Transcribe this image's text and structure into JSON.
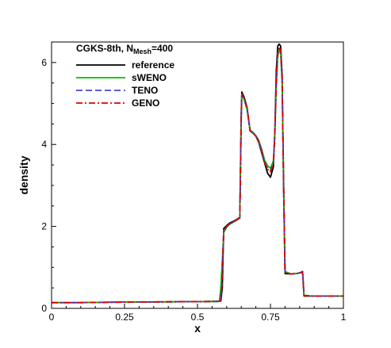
{
  "chart_data": {
    "type": "line",
    "legend_title": "CGKS-8th, N",
    "legend_title_sub": "Mesh",
    "legend_title_suffix": "=400",
    "xlabel": "x",
    "ylabel": "density",
    "xlim": [
      0,
      1
    ],
    "ylim": [
      0,
      6.5
    ],
    "x_ticks": [
      0,
      0.25,
      0.5,
      0.75,
      1
    ],
    "x_tick_labels": [
      "0",
      "0.25",
      "0.5",
      "0.75",
      "1"
    ],
    "y_ticks": [
      0,
      2,
      4,
      6
    ],
    "y_tick_labels": [
      "0",
      "2",
      "4",
      "6"
    ],
    "grid": false,
    "legend_position": "top-left",
    "series": [
      {
        "name": "reference",
        "color": "#000000",
        "dash": "solid",
        "points": [
          [
            0,
            0.14
          ],
          [
            0.1,
            0.14
          ],
          [
            0.2,
            0.15
          ],
          [
            0.3,
            0.155
          ],
          [
            0.4,
            0.16
          ],
          [
            0.5,
            0.165
          ],
          [
            0.57,
            0.17
          ],
          [
            0.58,
            0.18
          ],
          [
            0.585,
            0.5
          ],
          [
            0.59,
            1.95
          ],
          [
            0.6,
            2.02
          ],
          [
            0.61,
            2.08
          ],
          [
            0.63,
            2.15
          ],
          [
            0.645,
            2.22
          ],
          [
            0.65,
            4.8
          ],
          [
            0.652,
            5.28
          ],
          [
            0.66,
            5.15
          ],
          [
            0.67,
            4.9
          ],
          [
            0.68,
            4.35
          ],
          [
            0.69,
            4.28
          ],
          [
            0.7,
            4.2
          ],
          [
            0.71,
            4.05
          ],
          [
            0.72,
            3.8
          ],
          [
            0.73,
            3.55
          ],
          [
            0.74,
            3.3
          ],
          [
            0.75,
            3.2
          ],
          [
            0.76,
            3.45
          ],
          [
            0.765,
            4.3
          ],
          [
            0.77,
            5.8
          ],
          [
            0.775,
            6.4
          ],
          [
            0.78,
            6.45
          ],
          [
            0.785,
            6.4
          ],
          [
            0.79,
            5.7
          ],
          [
            0.795,
            3.0
          ],
          [
            0.8,
            0.85
          ],
          [
            0.82,
            0.84
          ],
          [
            0.84,
            0.85
          ],
          [
            0.855,
            0.88
          ],
          [
            0.86,
            0.9
          ],
          [
            0.865,
            0.3
          ],
          [
            0.9,
            0.3
          ],
          [
            1,
            0.3
          ]
        ]
      },
      {
        "name": "sWENO",
        "color": "#00c000",
        "dash": "solid",
        "points": [
          [
            0,
            0.14
          ],
          [
            0.1,
            0.14
          ],
          [
            0.2,
            0.15
          ],
          [
            0.3,
            0.155
          ],
          [
            0.4,
            0.16
          ],
          [
            0.5,
            0.165
          ],
          [
            0.57,
            0.17
          ],
          [
            0.575,
            0.18
          ],
          [
            0.58,
            0.5
          ],
          [
            0.59,
            1.85
          ],
          [
            0.6,
            1.98
          ],
          [
            0.61,
            2.05
          ],
          [
            0.63,
            2.13
          ],
          [
            0.645,
            2.2
          ],
          [
            0.65,
            4.6
          ],
          [
            0.652,
            5.2
          ],
          [
            0.66,
            5.1
          ],
          [
            0.67,
            4.85
          ],
          [
            0.68,
            4.35
          ],
          [
            0.69,
            4.3
          ],
          [
            0.7,
            4.22
          ],
          [
            0.71,
            4.1
          ],
          [
            0.72,
            3.88
          ],
          [
            0.73,
            3.62
          ],
          [
            0.74,
            3.48
          ],
          [
            0.75,
            3.42
          ],
          [
            0.76,
            3.6
          ],
          [
            0.765,
            4.2
          ],
          [
            0.77,
            5.4
          ],
          [
            0.775,
            6.15
          ],
          [
            0.78,
            6.3
          ],
          [
            0.785,
            6.22
          ],
          [
            0.79,
            5.5
          ],
          [
            0.795,
            3.2
          ],
          [
            0.8,
            0.9
          ],
          [
            0.82,
            0.84
          ],
          [
            0.84,
            0.85
          ],
          [
            0.855,
            0.87
          ],
          [
            0.86,
            0.9
          ],
          [
            0.865,
            0.32
          ],
          [
            0.9,
            0.3
          ],
          [
            1,
            0.3
          ]
        ]
      },
      {
        "name": "TENO",
        "color": "#4444dd",
        "dash": "dashed",
        "points": [
          [
            0,
            0.14
          ],
          [
            0.1,
            0.14
          ],
          [
            0.2,
            0.15
          ],
          [
            0.3,
            0.155
          ],
          [
            0.4,
            0.16
          ],
          [
            0.5,
            0.165
          ],
          [
            0.57,
            0.17
          ],
          [
            0.578,
            0.18
          ],
          [
            0.583,
            0.5
          ],
          [
            0.59,
            1.9
          ],
          [
            0.6,
            2.0
          ],
          [
            0.61,
            2.06
          ],
          [
            0.63,
            2.14
          ],
          [
            0.645,
            2.21
          ],
          [
            0.65,
            4.7
          ],
          [
            0.652,
            5.22
          ],
          [
            0.66,
            5.1
          ],
          [
            0.67,
            4.87
          ],
          [
            0.68,
            4.33
          ],
          [
            0.69,
            4.27
          ],
          [
            0.7,
            4.2
          ],
          [
            0.71,
            4.08
          ],
          [
            0.72,
            3.85
          ],
          [
            0.73,
            3.58
          ],
          [
            0.74,
            3.42
          ],
          [
            0.75,
            3.36
          ],
          [
            0.76,
            3.55
          ],
          [
            0.765,
            4.25
          ],
          [
            0.77,
            5.5
          ],
          [
            0.775,
            6.2
          ],
          [
            0.78,
            6.35
          ],
          [
            0.785,
            6.27
          ],
          [
            0.79,
            5.6
          ],
          [
            0.795,
            3.1
          ],
          [
            0.8,
            0.88
          ],
          [
            0.82,
            0.84
          ],
          [
            0.84,
            0.85
          ],
          [
            0.855,
            0.87
          ],
          [
            0.86,
            0.9
          ],
          [
            0.865,
            0.31
          ],
          [
            0.9,
            0.3
          ],
          [
            1,
            0.3
          ]
        ]
      },
      {
        "name": "GENO",
        "color": "#dd0000",
        "dash": "dashdot",
        "points": [
          [
            0,
            0.14
          ],
          [
            0.1,
            0.14
          ],
          [
            0.2,
            0.15
          ],
          [
            0.3,
            0.155
          ],
          [
            0.4,
            0.16
          ],
          [
            0.5,
            0.165
          ],
          [
            0.57,
            0.17
          ],
          [
            0.578,
            0.18
          ],
          [
            0.583,
            0.5
          ],
          [
            0.59,
            1.9
          ],
          [
            0.6,
            2.0
          ],
          [
            0.61,
            2.06
          ],
          [
            0.63,
            2.14
          ],
          [
            0.645,
            2.21
          ],
          [
            0.65,
            4.72
          ],
          [
            0.652,
            5.24
          ],
          [
            0.66,
            5.12
          ],
          [
            0.67,
            4.88
          ],
          [
            0.68,
            4.34
          ],
          [
            0.69,
            4.28
          ],
          [
            0.7,
            4.2
          ],
          [
            0.71,
            4.07
          ],
          [
            0.72,
            3.84
          ],
          [
            0.73,
            3.57
          ],
          [
            0.74,
            3.4
          ],
          [
            0.75,
            3.33
          ],
          [
            0.76,
            3.52
          ],
          [
            0.765,
            4.27
          ],
          [
            0.77,
            5.55
          ],
          [
            0.775,
            6.25
          ],
          [
            0.78,
            6.38
          ],
          [
            0.785,
            6.3
          ],
          [
            0.79,
            5.62
          ],
          [
            0.795,
            3.05
          ],
          [
            0.8,
            0.87
          ],
          [
            0.82,
            0.84
          ],
          [
            0.84,
            0.85
          ],
          [
            0.855,
            0.87
          ],
          [
            0.86,
            0.9
          ],
          [
            0.865,
            0.31
          ],
          [
            0.9,
            0.3
          ],
          [
            1,
            0.3
          ]
        ]
      }
    ]
  }
}
